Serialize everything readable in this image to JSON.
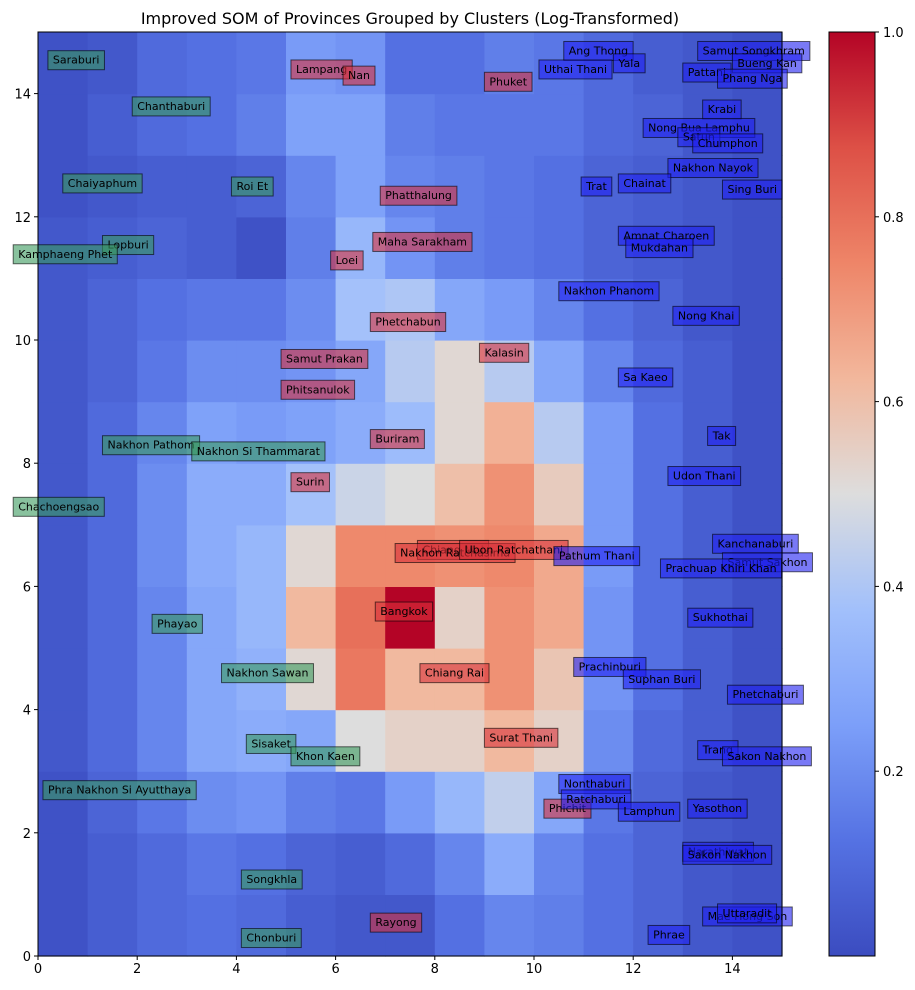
{
  "chart_data": {
    "type": "heatmap",
    "title": "Improved SOM of Provinces Grouped by Clusters (Log-Transformed)",
    "xlabel": "",
    "ylabel": "",
    "xlim": [
      0,
      15
    ],
    "ylim": [
      0,
      15
    ],
    "x_ticks": [
      "0",
      "2",
      "4",
      "6",
      "8",
      "10",
      "12",
      "14"
    ],
    "y_ticks": [
      "0",
      "2",
      "4",
      "6",
      "8",
      "10",
      "12",
      "14"
    ],
    "colorbar": {
      "colormap": "coolwarm",
      "range": [
        0.0,
        1.0
      ],
      "ticks": [
        "0.2",
        "0.4",
        "0.6",
        "0.8",
        "1.0"
      ]
    },
    "grid": [
      [
        0.02,
        0.06,
        0.1,
        0.12,
        0.1,
        0.06,
        0.04,
        0.04,
        0.12,
        0.18,
        0.16,
        0.12,
        0.08,
        0.04,
        0.02
      ],
      [
        0.02,
        0.06,
        0.1,
        0.14,
        0.12,
        0.08,
        0.06,
        0.1,
        0.18,
        0.3,
        0.18,
        0.12,
        0.08,
        0.04,
        0.02
      ],
      [
        0.02,
        0.08,
        0.14,
        0.2,
        0.22,
        0.16,
        0.14,
        0.24,
        0.34,
        0.44,
        0.28,
        0.14,
        0.08,
        0.04,
        0.02
      ],
      [
        0.04,
        0.1,
        0.18,
        0.28,
        0.3,
        0.28,
        0.5,
        0.54,
        0.54,
        0.62,
        0.54,
        0.2,
        0.1,
        0.06,
        0.02
      ],
      [
        0.04,
        0.1,
        0.18,
        0.28,
        0.32,
        0.52,
        0.78,
        0.62,
        0.62,
        0.72,
        0.58,
        0.22,
        0.12,
        0.06,
        0.02
      ],
      [
        0.04,
        0.1,
        0.18,
        0.28,
        0.34,
        0.62,
        0.8,
        1.0,
        0.54,
        0.72,
        0.66,
        0.22,
        0.12,
        0.06,
        0.02
      ],
      [
        0.04,
        0.1,
        0.2,
        0.3,
        0.34,
        0.52,
        0.74,
        0.74,
        0.72,
        0.74,
        0.66,
        0.24,
        0.12,
        0.06,
        0.02
      ],
      [
        0.04,
        0.1,
        0.2,
        0.3,
        0.3,
        0.38,
        0.46,
        0.5,
        0.6,
        0.72,
        0.56,
        0.24,
        0.12,
        0.06,
        0.02
      ],
      [
        0.04,
        0.1,
        0.18,
        0.26,
        0.24,
        0.26,
        0.3,
        0.36,
        0.52,
        0.64,
        0.42,
        0.24,
        0.12,
        0.06,
        0.02
      ],
      [
        0.04,
        0.08,
        0.14,
        0.2,
        0.2,
        0.22,
        0.28,
        0.42,
        0.52,
        0.42,
        0.28,
        0.18,
        0.1,
        0.06,
        0.02
      ],
      [
        0.04,
        0.08,
        0.12,
        0.14,
        0.14,
        0.2,
        0.38,
        0.4,
        0.28,
        0.24,
        0.18,
        0.12,
        0.08,
        0.04,
        0.02
      ],
      [
        0.04,
        0.06,
        0.08,
        0.06,
        0.02,
        0.16,
        0.34,
        0.22,
        0.16,
        0.14,
        0.12,
        0.08,
        0.06,
        0.04,
        0.02
      ],
      [
        0.02,
        0.04,
        0.06,
        0.06,
        0.08,
        0.18,
        0.26,
        0.18,
        0.16,
        0.14,
        0.12,
        0.08,
        0.06,
        0.04,
        0.02
      ],
      [
        0.02,
        0.06,
        0.1,
        0.12,
        0.16,
        0.26,
        0.26,
        0.16,
        0.14,
        0.14,
        0.14,
        0.1,
        0.08,
        0.04,
        0.02
      ],
      [
        0.02,
        0.04,
        0.1,
        0.12,
        0.14,
        0.24,
        0.22,
        0.12,
        0.12,
        0.16,
        0.14,
        0.1,
        0.06,
        0.04,
        0.02
      ]
    ],
    "cluster_colors": {
      "green": "#3a9a5e",
      "red": "#d9303a",
      "blue": "#2020f0"
    },
    "labels": [
      {
        "text": "Saraburi",
        "x": 0.2,
        "y": 14.55,
        "cluster": "green"
      },
      {
        "text": "Chanthaburi",
        "x": 1.9,
        "y": 13.8,
        "cluster": "green"
      },
      {
        "text": "Chaiyaphum",
        "x": 0.5,
        "y": 12.55,
        "cluster": "green"
      },
      {
        "text": "Roi Et",
        "x": 3.9,
        "y": 12.5,
        "cluster": "green"
      },
      {
        "text": "Lopburi",
        "x": 1.3,
        "y": 11.55,
        "cluster": "green"
      },
      {
        "text": "Kamphaeng Phet",
        "x": -0.5,
        "y": 11.4,
        "cluster": "green"
      },
      {
        "text": "Nakhon Pathom",
        "x": 1.3,
        "y": 8.3,
        "cluster": "green"
      },
      {
        "text": "Nakhon Si Thammarat",
        "x": 3.1,
        "y": 8.2,
        "cluster": "green"
      },
      {
        "text": "Chachoengsao",
        "x": -0.5,
        "y": 7.3,
        "cluster": "green"
      },
      {
        "text": "Phayao",
        "x": 2.3,
        "y": 5.4,
        "cluster": "green"
      },
      {
        "text": "Nakhon Sawan",
        "x": 3.7,
        "y": 4.6,
        "cluster": "green"
      },
      {
        "text": "Sisaket",
        "x": 4.2,
        "y": 3.45,
        "cluster": "green"
      },
      {
        "text": "Khon Kaen",
        "x": 5.1,
        "y": 3.25,
        "cluster": "green"
      },
      {
        "text": "Phra Nakhon Si Ayutthaya",
        "x": 0.1,
        "y": 2.7,
        "cluster": "green"
      },
      {
        "text": "Songkhla",
        "x": 4.1,
        "y": 1.25,
        "cluster": "green"
      },
      {
        "text": "Chonburi",
        "x": 4.1,
        "y": 0.3,
        "cluster": "green"
      },
      {
        "text": "Lampang",
        "x": 5.1,
        "y": 14.4,
        "cluster": "red"
      },
      {
        "text": "Nan",
        "x": 6.15,
        "y": 14.3,
        "cluster": "red"
      },
      {
        "text": "Phuket",
        "x": 9.0,
        "y": 14.2,
        "cluster": "red"
      },
      {
        "text": "Phatthalung",
        "x": 6.9,
        "y": 12.35,
        "cluster": "red"
      },
      {
        "text": "Maha Sarakham",
        "x": 6.75,
        "y": 11.6,
        "cluster": "red"
      },
      {
        "text": "Loei",
        "x": 5.9,
        "y": 11.3,
        "cluster": "red"
      },
      {
        "text": "Phetchabun",
        "x": 6.7,
        "y": 10.3,
        "cluster": "red"
      },
      {
        "text": "Samut Prakan",
        "x": 4.9,
        "y": 9.7,
        "cluster": "red"
      },
      {
        "text": "Kalasin",
        "x": 8.9,
        "y": 9.8,
        "cluster": "red"
      },
      {
        "text": "Phitsanulok",
        "x": 4.9,
        "y": 9.2,
        "cluster": "red"
      },
      {
        "text": "Buriram",
        "x": 6.7,
        "y": 8.4,
        "cluster": "red"
      },
      {
        "text": "Surin",
        "x": 5.1,
        "y": 7.7,
        "cluster": "red"
      },
      {
        "text": "Chiang Mai",
        "x": 7.65,
        "y": 6.6,
        "cluster": "red"
      },
      {
        "text": "Nakhon Ratchasima",
        "x": 7.2,
        "y": 6.55,
        "cluster": "red"
      },
      {
        "text": "Ubon Ratchathani",
        "x": 8.5,
        "y": 6.6,
        "cluster": "red"
      },
      {
        "text": "Bangkok",
        "x": 6.8,
        "y": 5.6,
        "cluster": "red"
      },
      {
        "text": "Chiang Rai",
        "x": 7.7,
        "y": 4.6,
        "cluster": "red"
      },
      {
        "text": "Surat Thani",
        "x": 9.0,
        "y": 3.55,
        "cluster": "red"
      },
      {
        "text": "Phichit",
        "x": 10.2,
        "y": 2.4,
        "cluster": "red"
      },
      {
        "text": "Rayong",
        "x": 6.7,
        "y": 0.55,
        "cluster": "red"
      },
      {
        "text": "Ang Thong",
        "x": 10.6,
        "y": 14.7,
        "cluster": "blue"
      },
      {
        "text": "Yala",
        "x": 11.6,
        "y": 14.5,
        "cluster": "blue"
      },
      {
        "text": "Uthai Thani",
        "x": 10.1,
        "y": 14.4,
        "cluster": "blue"
      },
      {
        "text": "Samut Songkhram",
        "x": 13.3,
        "y": 14.7,
        "cluster": "blue"
      },
      {
        "text": "Bueng Kan",
        "x": 14.0,
        "y": 14.5,
        "cluster": "blue"
      },
      {
        "text": "Pattani",
        "x": 13.0,
        "y": 14.35,
        "cluster": "blue"
      },
      {
        "text": "Phang Nga",
        "x": 13.7,
        "y": 14.25,
        "cluster": "blue"
      },
      {
        "text": "Krabi",
        "x": 13.4,
        "y": 13.75,
        "cluster": "blue"
      },
      {
        "text": "Nong Bua Lamphu",
        "x": 12.2,
        "y": 13.45,
        "cluster": "blue"
      },
      {
        "text": "Satun",
        "x": 12.9,
        "y": 13.3,
        "cluster": "blue"
      },
      {
        "text": "Chumphon",
        "x": 13.2,
        "y": 13.2,
        "cluster": "blue"
      },
      {
        "text": "Nakhon Nayok",
        "x": 12.7,
        "y": 12.8,
        "cluster": "blue"
      },
      {
        "text": "Chainat",
        "x": 11.7,
        "y": 12.55,
        "cluster": "blue"
      },
      {
        "text": "Trat",
        "x": 10.95,
        "y": 12.5,
        "cluster": "blue"
      },
      {
        "text": "Sing Buri",
        "x": 13.8,
        "y": 12.45,
        "cluster": "blue"
      },
      {
        "text": "Amnat Charoen",
        "x": 11.7,
        "y": 11.7,
        "cluster": "blue"
      },
      {
        "text": "Mukdahan",
        "x": 11.85,
        "y": 11.5,
        "cluster": "blue"
      },
      {
        "text": "Nakhon Phanom",
        "x": 10.5,
        "y": 10.8,
        "cluster": "blue"
      },
      {
        "text": "Nong Khai",
        "x": 12.8,
        "y": 10.4,
        "cluster": "blue"
      },
      {
        "text": "Sa Kaeo",
        "x": 11.7,
        "y": 9.4,
        "cluster": "blue"
      },
      {
        "text": "Tak",
        "x": 13.5,
        "y": 8.45,
        "cluster": "blue"
      },
      {
        "text": "Udon Thani",
        "x": 12.7,
        "y": 7.8,
        "cluster": "blue"
      },
      {
        "text": "Kanchanaburi",
        "x": 13.6,
        "y": 6.7,
        "cluster": "blue"
      },
      {
        "text": "Pathum Thani",
        "x": 10.4,
        "y": 6.5,
        "cluster": "blue"
      },
      {
        "text": "Samut Sakhon",
        "x": 13.8,
        "y": 6.4,
        "cluster": "blue"
      },
      {
        "text": "Prachuap Khiri Khan",
        "x": 12.55,
        "y": 6.3,
        "cluster": "blue"
      },
      {
        "text": "Sukhothai",
        "x": 13.1,
        "y": 5.5,
        "cluster": "blue"
      },
      {
        "text": "Prachinburi",
        "x": 10.8,
        "y": 4.7,
        "cluster": "blue"
      },
      {
        "text": "Suphan Buri",
        "x": 11.8,
        "y": 4.5,
        "cluster": "blue"
      },
      {
        "text": "Phetchaburi",
        "x": 13.9,
        "y": 4.25,
        "cluster": "blue"
      },
      {
        "text": "Trang",
        "x": 13.3,
        "y": 3.35,
        "cluster": "blue"
      },
      {
        "text": "Sakon Nakhon",
        "x": 13.8,
        "y": 3.25,
        "cluster": "blue"
      },
      {
        "text": "Nonthaburi",
        "x": 10.5,
        "y": 2.8,
        "cluster": "blue"
      },
      {
        "text": "Ratchaburi",
        "x": 10.55,
        "y": 2.55,
        "cluster": "blue"
      },
      {
        "text": "Lamphun",
        "x": 11.7,
        "y": 2.35,
        "cluster": "blue"
      },
      {
        "text": "Yasothon",
        "x": 13.1,
        "y": 2.4,
        "cluster": "blue"
      },
      {
        "text": "Narathiwat",
        "x": 13.0,
        "y": 1.7,
        "cluster": "blue"
      },
      {
        "text": "Sakon Nakhon",
        "x": 13.0,
        "y": 1.65,
        "cluster": "blue"
      },
      {
        "text": "Mae Hong Son",
        "x": 13.4,
        "y": 0.65,
        "cluster": "blue"
      },
      {
        "text": "Uttaradit",
        "x": 13.7,
        "y": 0.7,
        "cluster": "blue"
      },
      {
        "text": "Phrae",
        "x": 12.3,
        "y": 0.35,
        "cluster": "blue"
      }
    ]
  }
}
